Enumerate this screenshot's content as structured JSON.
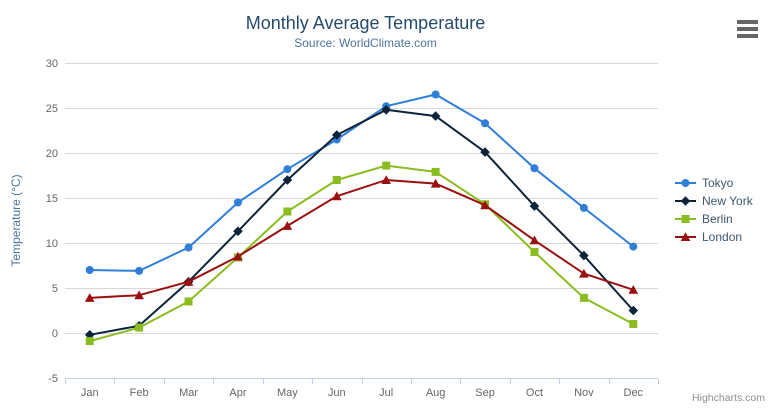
{
  "header": {
    "title": "Monthly Average Temperature",
    "subtitle": "Source: WorldClimate.com"
  },
  "credits": {
    "label": "Highcharts.com"
  },
  "icons": {
    "export_menu": "hamburger-icon"
  },
  "colors": {
    "title": "#274b6d",
    "subtitle": "#4d759e",
    "axis_title": "#4d759e",
    "axis_labels": "#666666",
    "gridline": "#d8d8d8",
    "axis_line": "#c0d0e0",
    "legend_text": "#3e576f",
    "credits": "#8f8f8f",
    "menu_icon": "#666666"
  },
  "chart_data": {
    "type": "line",
    "title": "Monthly Average Temperature",
    "subtitle": "Source: WorldClimate.com",
    "categories": [
      "Jan",
      "Feb",
      "Mar",
      "Apr",
      "May",
      "Jun",
      "Jul",
      "Aug",
      "Sep",
      "Oct",
      "Nov",
      "Dec"
    ],
    "xlabel": "",
    "ylabel": "Temperature (°C)",
    "ylim": [
      -5,
      30
    ],
    "y_ticks": [
      -5,
      0,
      5,
      10,
      15,
      20,
      25,
      30
    ],
    "grid": true,
    "legend_position": "right",
    "series": [
      {
        "name": "Tokyo",
        "color": "#2f7ed8",
        "marker": "circle",
        "values": [
          7.0,
          6.9,
          9.5,
          14.5,
          18.2,
          21.5,
          25.2,
          26.5,
          23.3,
          18.3,
          13.9,
          9.6
        ]
      },
      {
        "name": "New York",
        "color": "#0d233a",
        "marker": "diamond",
        "values": [
          -0.2,
          0.8,
          5.7,
          11.3,
          17.0,
          22.0,
          24.8,
          24.1,
          20.1,
          14.1,
          8.6,
          2.5
        ]
      },
      {
        "name": "Berlin",
        "color": "#8bbc21",
        "marker": "square",
        "values": [
          -0.9,
          0.6,
          3.5,
          8.4,
          13.5,
          17.0,
          18.6,
          17.9,
          14.3,
          9.0,
          3.9,
          1.0
        ]
      },
      {
        "name": "London",
        "color": "#9a0f0f",
        "marker": "triangle",
        "values": [
          3.9,
          4.2,
          5.7,
          8.5,
          11.9,
          15.2,
          17.0,
          16.6,
          14.2,
          10.3,
          6.6,
          4.8
        ]
      }
    ]
  }
}
